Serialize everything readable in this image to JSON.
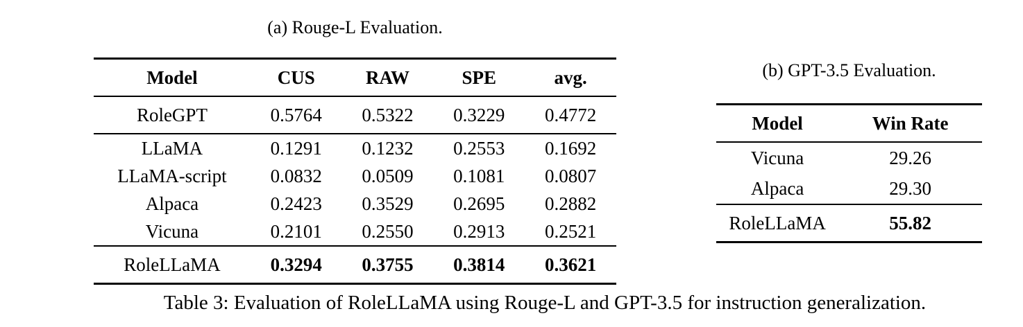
{
  "colors": {
    "text": "#000000",
    "background": "#ffffff",
    "rule": "#000000"
  },
  "subtable_a": {
    "caption": "(a) Rouge-L Evaluation.",
    "headers": [
      "Model",
      "CUS",
      "RAW",
      "SPE",
      "avg."
    ],
    "groups": [
      {
        "rows": [
          {
            "model": "RoleGPT",
            "values": [
              "0.5764",
              "0.5322",
              "0.3229",
              "0.4772"
            ],
            "bold_values": false
          }
        ]
      },
      {
        "rows": [
          {
            "model": "LLaMA",
            "values": [
              "0.1291",
              "0.1232",
              "0.2553",
              "0.1692"
            ],
            "bold_values": false
          },
          {
            "model": "LLaMA-script",
            "values": [
              "0.0832",
              "0.0509",
              "0.1081",
              "0.0807"
            ],
            "bold_values": false
          },
          {
            "model": "Alpaca",
            "values": [
              "0.2423",
              "0.3529",
              "0.2695",
              "0.2882"
            ],
            "bold_values": false
          },
          {
            "model": "Vicuna",
            "values": [
              "0.2101",
              "0.2550",
              "0.2913",
              "0.2521"
            ],
            "bold_values": false
          }
        ]
      },
      {
        "rows": [
          {
            "model": "RoleLLaMA",
            "values": [
              "0.3294",
              "0.3755",
              "0.3814",
              "0.3621"
            ],
            "bold_values": true
          }
        ]
      }
    ]
  },
  "subtable_b": {
    "caption": "(b) GPT-3.5 Evaluation.",
    "headers": [
      "Model",
      "Win Rate"
    ],
    "groups": [
      {
        "rows": [
          {
            "model": "Vicuna",
            "values": [
              "29.26"
            ],
            "bold_values": false
          },
          {
            "model": "Alpaca",
            "values": [
              "29.30"
            ],
            "bold_values": false
          }
        ]
      },
      {
        "rows": [
          {
            "model": "RoleLLaMA",
            "values": [
              "55.82"
            ],
            "bold_values": true
          }
        ]
      }
    ]
  },
  "main_caption": "Table 3: Evaluation of RoleLLaMA using Rouge-L and GPT-3.5 for instruction generalization."
}
